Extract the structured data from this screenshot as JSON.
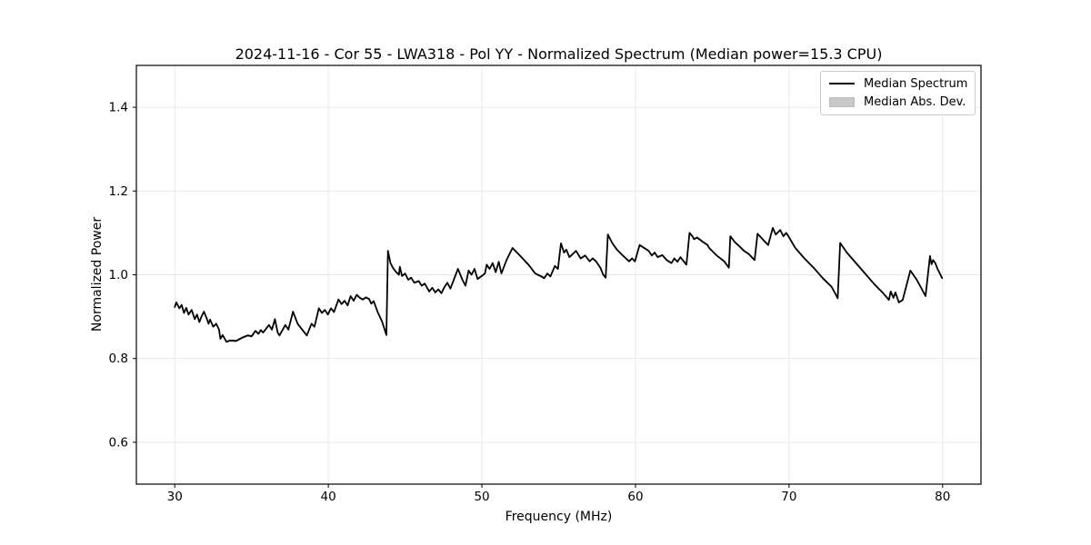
{
  "chart_data": {
    "type": "line",
    "title": "2024-11-16 - Cor 55 - LWA318 - Pol YY - Normalized Spectrum (Median power=15.3 CPU)",
    "xlabel": "Frequency (MHz)",
    "ylabel": "Normalized Power",
    "xlim": [
      27.5,
      82.5
    ],
    "ylim": [
      0.5,
      1.5
    ],
    "xticks": [
      30,
      40,
      50,
      60,
      70,
      80
    ],
    "yticks": [
      0.6,
      0.8,
      1.0,
      1.2,
      1.4
    ],
    "grid": true,
    "grid_color": "#e6e6e6",
    "frame_color": "#000000",
    "legend": {
      "position": "upper right",
      "entries": [
        {
          "label": "Median Spectrum",
          "type": "line",
          "color": "#000000"
        },
        {
          "label": "Median Abs. Dev.",
          "type": "patch",
          "color": "#c8c8c8"
        }
      ]
    },
    "mad_band": {
      "name": "Median Abs. Dev.",
      "color": "#c8c8c8",
      "halfwidth": 0.003
    },
    "series": [
      {
        "name": "Median Spectrum",
        "color": "#000000",
        "linewidth": 1.8,
        "x": [
          30.0,
          30.1,
          30.3,
          30.45,
          30.6,
          30.75,
          30.9,
          31.1,
          31.3,
          31.45,
          31.6,
          31.75,
          31.9,
          32.1,
          32.2,
          32.3,
          32.5,
          32.7,
          32.88,
          32.97,
          33.12,
          33.37,
          33.6,
          34.0,
          34.4,
          34.75,
          35.0,
          35.25,
          35.45,
          35.6,
          35.75,
          36.13,
          36.33,
          36.52,
          36.7,
          36.82,
          37.2,
          37.4,
          37.7,
          38.0,
          38.3,
          38.6,
          38.9,
          39.1,
          39.38,
          39.58,
          39.78,
          39.97,
          40.17,
          40.37,
          40.66,
          40.86,
          41.06,
          41.26,
          41.45,
          41.65,
          41.85,
          42.05,
          42.25,
          42.45,
          42.65,
          42.8,
          42.95,
          43.2,
          43.5,
          43.78,
          43.88,
          44.05,
          44.2,
          44.4,
          44.6,
          44.66,
          44.8,
          45.0,
          45.2,
          45.4,
          45.6,
          45.88,
          46.08,
          46.28,
          46.57,
          46.77,
          46.96,
          47.16,
          47.36,
          47.55,
          47.75,
          47.95,
          48.14,
          48.44,
          48.73,
          48.93,
          49.13,
          49.32,
          49.52,
          49.72,
          49.95,
          50.2,
          50.31,
          50.5,
          50.7,
          50.9,
          51.1,
          51.27,
          51.6,
          51.99,
          52.29,
          52.68,
          53.08,
          53.47,
          53.87,
          54.06,
          54.26,
          54.46,
          54.75,
          54.95,
          55.15,
          55.35,
          55.5,
          55.7,
          55.9,
          56.13,
          56.43,
          56.72,
          57.02,
          57.21,
          57.41,
          57.71,
          57.9,
          58.06,
          58.2,
          58.5,
          58.79,
          59.09,
          59.38,
          59.58,
          59.78,
          59.97,
          60.27,
          60.57,
          60.86,
          61.06,
          61.25,
          61.45,
          61.75,
          62.04,
          62.34,
          62.53,
          62.73,
          62.93,
          63.32,
          63.52,
          63.71,
          63.81,
          64.01,
          64.41,
          64.7,
          64.8,
          65.29,
          65.78,
          66.08,
          66.18,
          66.47,
          66.77,
          67.07,
          67.36,
          67.76,
          67.95,
          68.35,
          68.64,
          68.94,
          69.13,
          69.43,
          69.63,
          69.82,
          69.96,
          70.41,
          71.0,
          71.6,
          72.19,
          72.78,
          73.17,
          73.33,
          73.77,
          74.36,
          74.95,
          75.54,
          76.13,
          76.5,
          76.62,
          76.8,
          76.93,
          77.15,
          77.4,
          77.9,
          78.3,
          78.69,
          78.89,
          79.18,
          79.28,
          79.38,
          79.52,
          79.68,
          79.97
        ],
        "y": [
          0.923,
          0.934,
          0.92,
          0.928,
          0.909,
          0.921,
          0.905,
          0.916,
          0.894,
          0.905,
          0.887,
          0.901,
          0.912,
          0.894,
          0.883,
          0.893,
          0.876,
          0.883,
          0.869,
          0.847,
          0.856,
          0.84,
          0.843,
          0.842,
          0.85,
          0.855,
          0.853,
          0.866,
          0.859,
          0.868,
          0.862,
          0.88,
          0.869,
          0.894,
          0.862,
          0.855,
          0.88,
          0.869,
          0.912,
          0.883,
          0.869,
          0.855,
          0.883,
          0.876,
          0.92,
          0.909,
          0.916,
          0.905,
          0.92,
          0.911,
          0.941,
          0.93,
          0.938,
          0.927,
          0.949,
          0.938,
          0.952,
          0.945,
          0.941,
          0.946,
          0.942,
          0.931,
          0.937,
          0.912,
          0.888,
          0.856,
          1.057,
          1.028,
          1.017,
          1.007,
          1.0,
          1.019,
          0.997,
          1.003,
          0.988,
          0.993,
          0.981,
          0.985,
          0.974,
          0.979,
          0.96,
          0.969,
          0.958,
          0.965,
          0.956,
          0.97,
          0.981,
          0.967,
          0.985,
          1.014,
          0.988,
          0.974,
          1.01,
          1.0,
          1.014,
          0.99,
          0.996,
          1.003,
          1.024,
          1.014,
          1.028,
          1.006,
          1.031,
          1.003,
          1.035,
          1.064,
          1.053,
          1.038,
          1.022,
          1.003,
          0.996,
          0.992,
          1.003,
          0.996,
          1.021,
          1.014,
          1.075,
          1.053,
          1.06,
          1.042,
          1.049,
          1.057,
          1.039,
          1.046,
          1.032,
          1.039,
          1.033,
          1.017,
          1.0,
          0.993,
          1.096,
          1.075,
          1.06,
          1.049,
          1.039,
          1.032,
          1.039,
          1.032,
          1.071,
          1.064,
          1.057,
          1.046,
          1.053,
          1.042,
          1.047,
          1.035,
          1.028,
          1.039,
          1.031,
          1.042,
          1.024,
          1.1,
          1.092,
          1.085,
          1.089,
          1.078,
          1.071,
          1.064,
          1.046,
          1.032,
          1.017,
          1.092,
          1.078,
          1.068,
          1.057,
          1.05,
          1.035,
          1.098,
          1.082,
          1.071,
          1.112,
          1.096,
          1.107,
          1.092,
          1.1,
          1.092,
          1.064,
          1.039,
          1.017,
          0.992,
          0.971,
          0.944,
          1.076,
          1.053,
          1.028,
          1.003,
          0.978,
          0.956,
          0.94,
          0.96,
          0.945,
          0.958,
          0.934,
          0.94,
          1.01,
          0.989,
          0.963,
          0.949,
          1.045,
          1.025,
          1.035,
          1.028,
          1.013,
          0.992
        ]
      }
    ]
  }
}
